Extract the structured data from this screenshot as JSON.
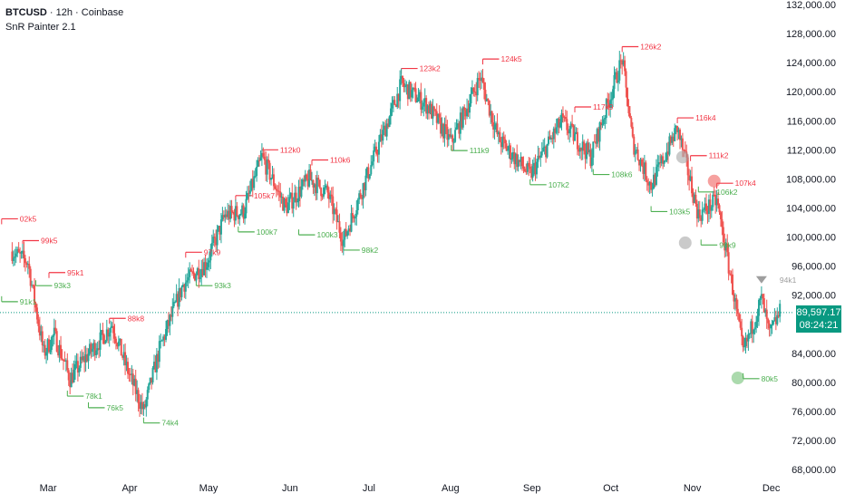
{
  "header": {
    "symbol": "BTCUSD",
    "separator1": " · ",
    "interval": "12h",
    "separator2": " · ",
    "exchange": "Coinbase",
    "indicator": "SnR Painter 2.1"
  },
  "last_price": {
    "value": "89,597.17",
    "countdown": "08:24:21"
  },
  "colors": {
    "up": "#26a69a",
    "down": "#ef5350",
    "resistance": "#f23645",
    "support": "#4caf50",
    "price_line": "#089981",
    "grey_marker": "#9e9e9e"
  },
  "chart_data": {
    "type": "candlestick",
    "symbol": "BTCUSD",
    "interval": "12h",
    "y_axis_labels": [
      "132,000.00",
      "128,000.00",
      "124,000.00",
      "120,000.00",
      "116,000.00",
      "112,000.00",
      "108,000.00",
      "104,000.00",
      "100,000.00",
      "96,000.00",
      "92,000.00",
      "84,000.00",
      "80,000.00",
      "76,000.00",
      "72,000.00",
      "68,000.00"
    ],
    "ylim": [
      68000,
      132000
    ],
    "x_axis_labels": [
      "Mar",
      "Apr",
      "May",
      "Jun",
      "Jul",
      "Aug",
      "Sep",
      "Oct",
      "Nov",
      "Dec"
    ],
    "price_path_approx": [
      {
        "date": "2025-02-16",
        "close": 98000
      },
      {
        "date": "2025-02-22",
        "close": 96500
      },
      {
        "date": "2025-02-28",
        "close": 84000
      },
      {
        "date": "2025-03-04",
        "close": 86500
      },
      {
        "date": "2025-03-10",
        "close": 80500
      },
      {
        "date": "2025-03-16",
        "close": 83500
      },
      {
        "date": "2025-03-22",
        "close": 86000
      },
      {
        "date": "2025-03-26",
        "close": 88000
      },
      {
        "date": "2025-03-31",
        "close": 82500
      },
      {
        "date": "2025-04-07",
        "close": 76000
      },
      {
        "date": "2025-04-13",
        "close": 84500
      },
      {
        "date": "2025-04-22",
        "close": 93500
      },
      {
        "date": "2025-05-01",
        "close": 96500
      },
      {
        "date": "2025-05-08",
        "close": 103000
      },
      {
        "date": "2025-05-15",
        "close": 103500
      },
      {
        "date": "2025-05-22",
        "close": 111000
      },
      {
        "date": "2025-05-31",
        "close": 104000
      },
      {
        "date": "2025-06-09",
        "close": 108000
      },
      {
        "date": "2025-06-16",
        "close": 106000
      },
      {
        "date": "2025-06-22",
        "close": 99500
      },
      {
        "date": "2025-06-30",
        "close": 107500
      },
      {
        "date": "2025-07-10",
        "close": 117000
      },
      {
        "date": "2025-07-14",
        "close": 121000
      },
      {
        "date": "2025-07-24",
        "close": 118000
      },
      {
        "date": "2025-08-02",
        "close": 113000
      },
      {
        "date": "2025-08-13",
        "close": 122000
      },
      {
        "date": "2025-08-20",
        "close": 113500
      },
      {
        "date": "2025-09-01",
        "close": 108500
      },
      {
        "date": "2025-09-13",
        "close": 116000
      },
      {
        "date": "2025-09-24",
        "close": 111000
      },
      {
        "date": "2025-10-06",
        "close": 124500
      },
      {
        "date": "2025-10-10",
        "close": 113000
      },
      {
        "date": "2025-10-17",
        "close": 107000
      },
      {
        "date": "2025-10-27",
        "close": 115000
      },
      {
        "date": "2025-11-04",
        "close": 103000
      },
      {
        "date": "2025-11-11",
        "close": 105000
      },
      {
        "date": "2025-11-17",
        "close": 93000
      },
      {
        "date": "2025-11-21",
        "close": 84000
      },
      {
        "date": "2025-11-28",
        "close": 91500
      },
      {
        "date": "2025-12-01",
        "close": 86500
      },
      {
        "date": "2025-12-05",
        "close": 89597.17
      }
    ],
    "current_price": 89597.17,
    "snr_labels": [
      {
        "text": "02k5",
        "type": "resistance",
        "date": "2025-02-12",
        "price": 102500
      },
      {
        "text": "99k5",
        "type": "resistance",
        "date": "2025-02-20",
        "price": 99500
      },
      {
        "text": "95k1",
        "type": "resistance",
        "date": "2025-03-02",
        "price": 95100
      },
      {
        "text": "91k1",
        "type": "support",
        "date": "2025-02-12",
        "price": 91100
      },
      {
        "text": "93k3",
        "type": "support",
        "date": "2025-02-25",
        "price": 93300
      },
      {
        "text": "78k1",
        "type": "support",
        "date": "2025-03-09",
        "price": 78100
      },
      {
        "text": "76k5",
        "type": "support",
        "date": "2025-03-17",
        "price": 76500
      },
      {
        "text": "88k8",
        "type": "resistance",
        "date": "2025-03-25",
        "price": 88800
      },
      {
        "text": "74k4",
        "type": "support",
        "date": "2025-04-07",
        "price": 74400
      },
      {
        "text": "97k9",
        "type": "resistance",
        "date": "2025-04-23",
        "price": 97900
      },
      {
        "text": "93k3",
        "type": "support",
        "date": "2025-04-27",
        "price": 93300
      },
      {
        "text": "105k7",
        "type": "resistance",
        "date": "2025-05-12",
        "price": 105700
      },
      {
        "text": "100k7",
        "type": "support",
        "date": "2025-05-13",
        "price": 100700
      },
      {
        "text": "112k0",
        "type": "resistance",
        "date": "2025-05-22",
        "price": 112000
      },
      {
        "text": "100k3",
        "type": "support",
        "date": "2025-06-05",
        "price": 100300
      },
      {
        "text": "110k6",
        "type": "resistance",
        "date": "2025-06-10",
        "price": 110600
      },
      {
        "text": "98k2",
        "type": "support",
        "date": "2025-06-22",
        "price": 98200
      },
      {
        "text": "123k2",
        "type": "resistance",
        "date": "2025-07-14",
        "price": 123200
      },
      {
        "text": "124k5",
        "type": "resistance",
        "date": "2025-08-14",
        "price": 124500
      },
      {
        "text": "111k9",
        "type": "support",
        "date": "2025-08-02",
        "price": 111900
      },
      {
        "text": "117k9",
        "type": "resistance",
        "date": "2025-09-18",
        "price": 117900
      },
      {
        "text": "107k2",
        "type": "support",
        "date": "2025-09-01",
        "price": 107200
      },
      {
        "text": "108k6",
        "type": "support",
        "date": "2025-09-25",
        "price": 108600
      },
      {
        "text": "126k2",
        "type": "resistance",
        "date": "2025-10-06",
        "price": 126200
      },
      {
        "text": "116k4",
        "type": "resistance",
        "date": "2025-10-27",
        "price": 116400
      },
      {
        "text": "103k5",
        "type": "support",
        "date": "2025-10-17",
        "price": 103500
      },
      {
        "text": "111k2",
        "type": "resistance",
        "date": "2025-11-01",
        "price": 111200
      },
      {
        "text": "106k2",
        "type": "support",
        "date": "2025-11-04",
        "price": 106200
      },
      {
        "text": "107k4",
        "type": "resistance",
        "date": "2025-11-11",
        "price": 107400
      },
      {
        "text": "98k9",
        "type": "support",
        "date": "2025-11-05",
        "price": 98900
      },
      {
        "text": "80k5",
        "type": "support",
        "date": "2025-11-21",
        "price": 80500
      },
      {
        "text": "94k1",
        "type": "neutral",
        "date": "2025-11-28",
        "price": 94100
      }
    ]
  }
}
